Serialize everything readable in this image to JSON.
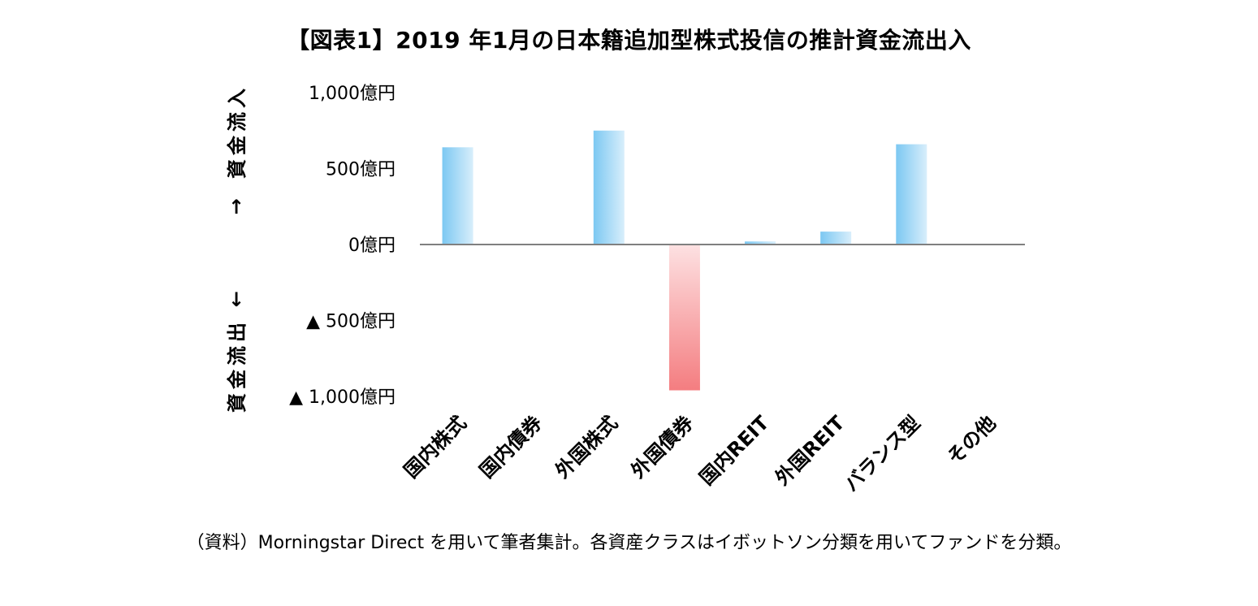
{
  "title": "【図表1】2019 年1月の日本籍追加型株式投信の推計資金流出入",
  "note": "（資料）Morningstar Direct を用いて筆者集計。各資産クラスはイボットソン分類を用いてファンドを分類。",
  "direction_labels": {
    "inflow": "資金流入",
    "outflow": "資金流出",
    "up_arrow": "↑",
    "down_arrow": "↓"
  },
  "colors": {
    "positive": "#8fd0f5",
    "negative": "#f48a8d",
    "zero_line": "#808080"
  },
  "chart_data": {
    "type": "bar",
    "categories": [
      "国内株式",
      "国内債券",
      "外国株式",
      "外国債券",
      "国内REIT",
      "外国REIT",
      "バランス型",
      "その他"
    ],
    "values": [
      640,
      0,
      750,
      -960,
      20,
      85,
      660,
      0
    ],
    "ylim": [
      -1000,
      1000
    ],
    "y_ticks": [
      {
        "value": 1000,
        "label": "1,000億円"
      },
      {
        "value": 500,
        "label": "500億円"
      },
      {
        "value": 0,
        "label": "0億円"
      },
      {
        "value": -500,
        "label": "▲ 500億円"
      },
      {
        "value": -1000,
        "label": "▲ 1,000億円"
      }
    ],
    "grid": false,
    "legend": "none"
  }
}
